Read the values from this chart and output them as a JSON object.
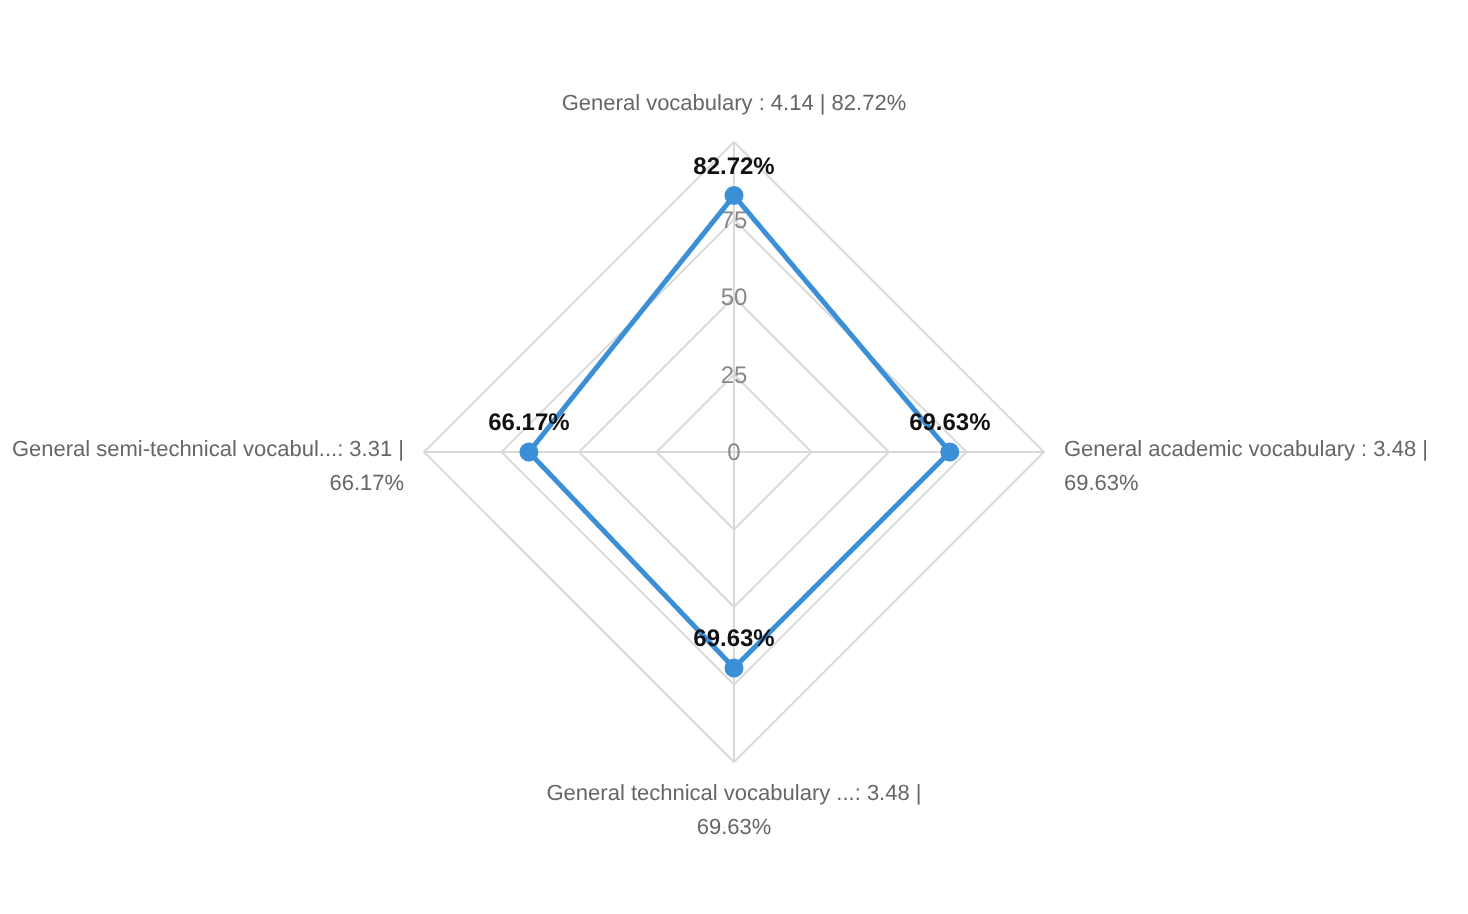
{
  "chart_data": {
    "type": "radar",
    "categories": [
      "General vocabulary : 4.14 | 82.72%",
      "General academic vocabulary : 3.48 | 69.63%",
      "General technical vocabulary  ...: 3.48 | 69.63%",
      "General semi-technical vocabul...: 3.31 | 66.17%"
    ],
    "series": [
      {
        "color": "#3a8fd6",
        "values": [
          82.72,
          69.63,
          69.63,
          66.17
        ],
        "value_labels": [
          "82.72%",
          "69.63%",
          "69.63%",
          "66.17%"
        ]
      }
    ],
    "ylim": [
      0,
      100
    ],
    "yticks": [
      0,
      25,
      50,
      75
    ],
    "grid": true,
    "marker": "circle",
    "line_style": "solid"
  }
}
